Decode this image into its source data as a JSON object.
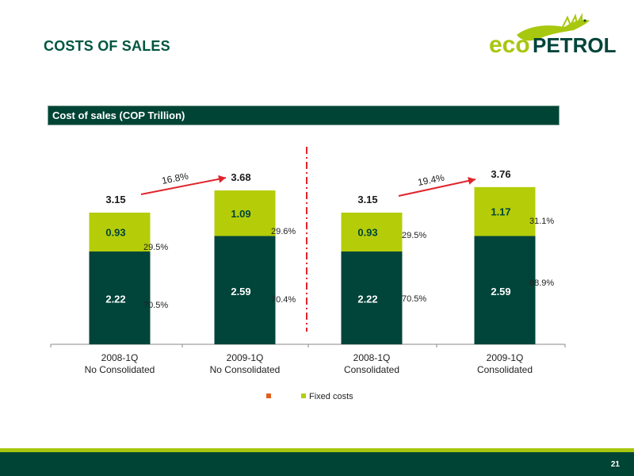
{
  "header": {
    "title": "COSTS OF SALES"
  },
  "logo": {
    "text": "ecopetrol"
  },
  "banner": {
    "label": "Cost of sales (COP Trillion)"
  },
  "colors": {
    "dark_green": "#00443a",
    "lime": "#b5cd08",
    "arrow_red": "#e0252b",
    "legend_orange": "#e0601f",
    "title_green": "#00563f"
  },
  "chart_data": {
    "type": "bar",
    "stacked": true,
    "categories": [
      [
        "2008-1Q",
        "No Consolidated"
      ],
      [
        "2009-1Q",
        "No Consolidated"
      ],
      [
        "2008-1Q",
        "Consolidated"
      ],
      [
        "2009-1Q",
        "Consolidated"
      ]
    ],
    "series": [
      {
        "values": [
          2.22,
          2.59,
          2.22,
          2.59
        ],
        "value_labels": [
          "2.22",
          "2.59",
          "2.22",
          "2.59"
        ],
        "pct_labels": [
          "70.5%",
          "70.4%",
          "70.5%",
          "68.9%"
        ]
      },
      {
        "name": "Fixed costs",
        "values": [
          0.93,
          1.09,
          0.93,
          1.17
        ],
        "value_labels": [
          "0.93",
          "1.09",
          "0.93",
          "1.17"
        ],
        "pct_labels": [
          "29.5%",
          "29.6%",
          "29.5%",
          "31.1%"
        ]
      }
    ],
    "totals": [
      "3.15",
      "3.68",
      "3.15",
      "3.76"
    ],
    "growth": [
      {
        "from": 0,
        "to": 1,
        "label": "16.8%"
      },
      {
        "from": 2,
        "to": 3,
        "label": "19.4%"
      }
    ],
    "legend": [
      {
        "label": ""
      },
      {
        "label": "Fixed costs"
      }
    ],
    "ylim": [
      0,
      4.4
    ],
    "legend_position": "bottom"
  },
  "footer": {
    "page_number": "21"
  }
}
